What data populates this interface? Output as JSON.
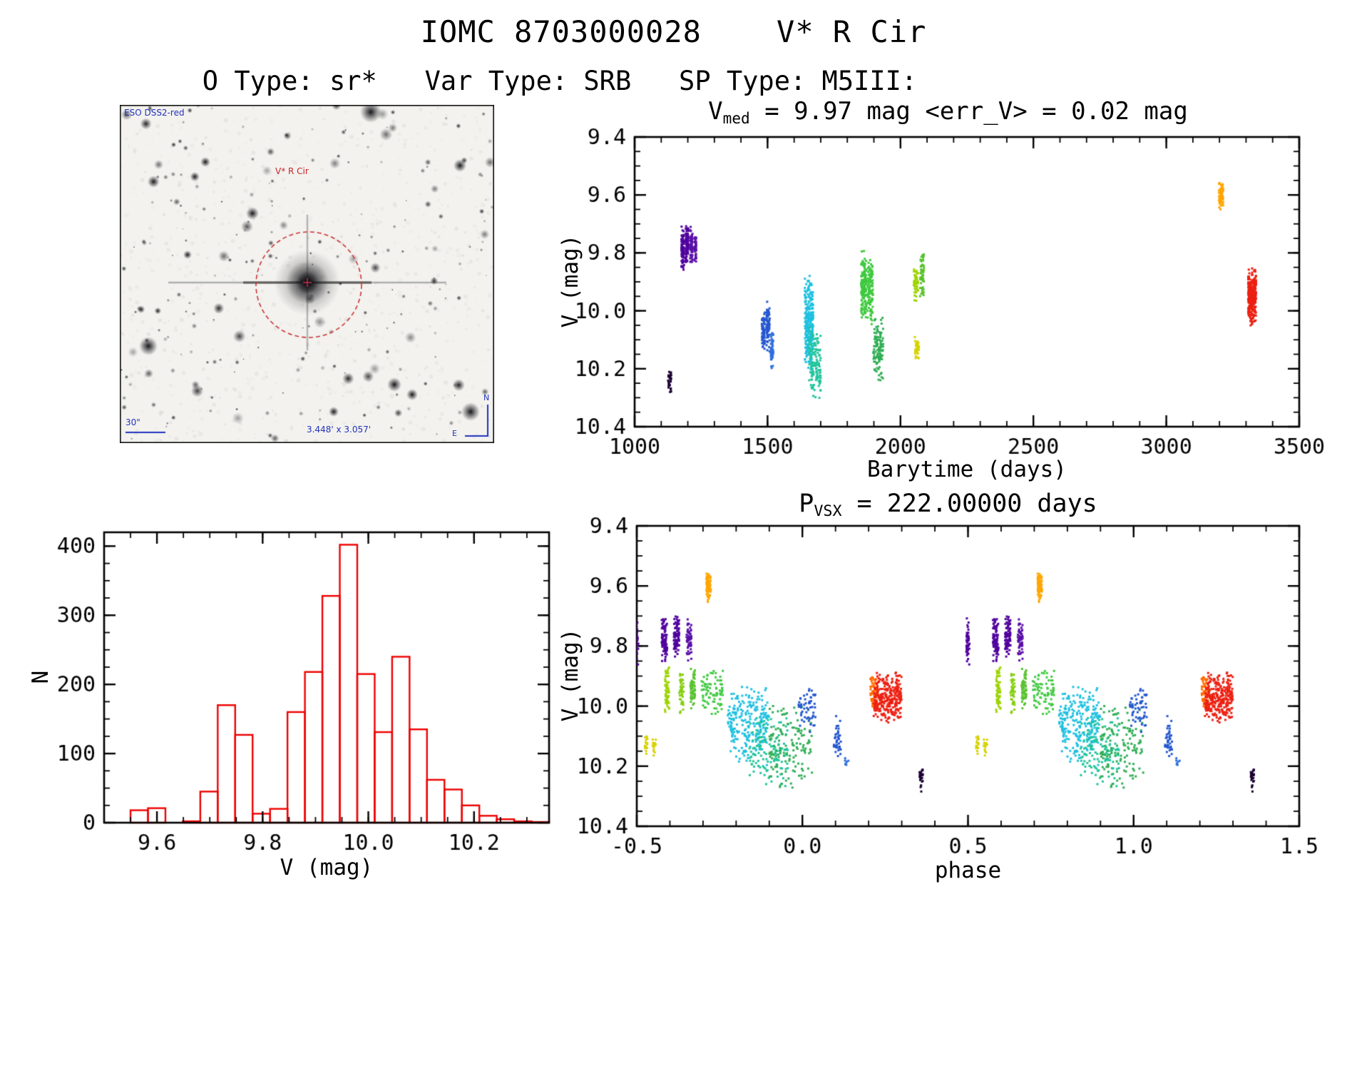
{
  "page": {
    "title": "IOMC 8703000028    V* R Cir",
    "subtitle": "O Type: sr*   Var Type: SRB   SP Type: M5III:"
  },
  "finder": {
    "survey": "ESO DSS2-red",
    "target": "V* R Cir",
    "scalebar": "30\"",
    "fov": "3.448' x 3.057'",
    "compass_n": "N",
    "compass_e": "E"
  },
  "chart_data": [
    {
      "id": "lightcurve",
      "type": "scatter",
      "title_prefix": "V",
      "title_sub": "med",
      "title_rest": " = 9.97 mag <err_V> = 0.02 mag",
      "xlabel": "Barytime (days)",
      "ylabel": "V (mag)",
      "xlim": [
        1000,
        3500
      ],
      "ylim": [
        9.4,
        10.4
      ],
      "y_inverted": true,
      "xticks": {
        "values": [
          1000,
          1500,
          2000,
          2500,
          3000,
          3500
        ],
        "labels": [
          "1000",
          "1500",
          "2000",
          "2500",
          "3000",
          "3500"
        ],
        "minor_step": 100
      },
      "yticks": {
        "values": [
          9.4,
          9.6,
          9.8,
          10.0,
          10.2,
          10.4
        ],
        "labels": [
          "9.4",
          "9.6",
          "9.8",
          "10.0",
          "10.2",
          "10.4"
        ],
        "minor_step": 0.05
      },
      "clusters": [
        {
          "color": "#1c0033",
          "x": [
            1126,
            1138
          ],
          "y": [
            10.2,
            10.29
          ],
          "n": 28
        },
        {
          "color": "#50009e",
          "x": [
            1176,
            1186
          ],
          "y": [
            9.7,
            9.87
          ],
          "n": 90
        },
        {
          "color": "#50009e",
          "x": [
            1192,
            1202
          ],
          "y": [
            9.69,
            9.84
          ],
          "n": 90
        },
        {
          "color": "#5a10a8",
          "x": [
            1208,
            1218
          ],
          "y": [
            9.7,
            9.85
          ],
          "n": 70
        },
        {
          "color": "#5a10a8",
          "x": [
            1224,
            1232
          ],
          "y": [
            9.72,
            9.83
          ],
          "n": 45
        },
        {
          "color": "#2457cf",
          "x": [
            1478,
            1490
          ],
          "y": [
            10.0,
            10.14
          ],
          "n": 70
        },
        {
          "color": "#2457cf",
          "x": [
            1496,
            1508
          ],
          "y": [
            9.96,
            10.15
          ],
          "n": 70
        },
        {
          "color": "#2e6fe0",
          "x": [
            1512,
            1522
          ],
          "y": [
            10.05,
            10.21
          ],
          "n": 45
        },
        {
          "color": "#1ec0e0",
          "x": [
            1640,
            1672
          ],
          "y": [
            9.87,
            10.22
          ],
          "n": 260
        },
        {
          "color": "#20c49a",
          "x": [
            1655,
            1700
          ],
          "y": [
            10.05,
            10.31
          ],
          "n": 130
        },
        {
          "color": "#3fc93f",
          "x": [
            1852,
            1872
          ],
          "y": [
            9.79,
            10.03
          ],
          "n": 160
        },
        {
          "color": "#3fc93f",
          "x": [
            1876,
            1896
          ],
          "y": [
            9.82,
            10.05
          ],
          "n": 110
        },
        {
          "color": "#2fae55",
          "x": [
            1898,
            1935
          ],
          "y": [
            10.02,
            10.25
          ],
          "n": 110
        },
        {
          "color": "#9ed400",
          "x": [
            2050,
            2066
          ],
          "y": [
            9.85,
            9.97
          ],
          "n": 55
        },
        {
          "color": "#d6d200",
          "x": [
            2054,
            2070
          ],
          "y": [
            10.09,
            10.17
          ],
          "n": 40
        },
        {
          "color": "#57c22e",
          "x": [
            2074,
            2088
          ],
          "y": [
            9.79,
            9.96
          ],
          "n": 60
        },
        {
          "color": "#ffa600",
          "x": [
            3198,
            3214
          ],
          "y": [
            9.55,
            9.66
          ],
          "n": 75
        },
        {
          "color": "#ec2012",
          "x": [
            3308,
            3338
          ],
          "y": [
            9.85,
            10.06
          ],
          "n": 280
        }
      ]
    },
    {
      "id": "histogram",
      "type": "bar",
      "xlabel": "V (mag)",
      "ylabel": "N",
      "xlim": [
        9.5,
        10.342
      ],
      "ylim": [
        0,
        420
      ],
      "xticks": {
        "values": [
          9.6,
          9.8,
          10.0,
          10.2
        ],
        "labels": [
          "9.6",
          "9.8",
          "10.0",
          "10.2"
        ],
        "minor_step": 0.05
      },
      "yticks": {
        "values": [
          0,
          100,
          200,
          300,
          400
        ],
        "labels": [
          "0",
          "100",
          "200",
          "300",
          "400"
        ],
        "minor_step": 25
      },
      "bar_color": "#ee0000",
      "bin_start": 9.55,
      "bin_width": 0.033,
      "counts": [
        18,
        21,
        0,
        2,
        45,
        170,
        127,
        13,
        20,
        160,
        218,
        328,
        402,
        215,
        131,
        240,
        135,
        62,
        48,
        25,
        10,
        5,
        2,
        1
      ]
    },
    {
      "id": "phase",
      "type": "scatter",
      "title_prefix": "P",
      "title_sub": "VSX",
      "title_rest": " = 222.00000 days",
      "xlabel": "phase",
      "ylabel": "V (mag)",
      "xlim": [
        -0.5,
        1.5
      ],
      "ylim": [
        9.4,
        10.4
      ],
      "y_inverted": true,
      "duplicate_offset": 1.0,
      "xticks": {
        "values": [
          -0.5,
          0.0,
          0.5,
          1.0,
          1.5
        ],
        "labels": [
          "-0.5",
          "0.0",
          "0.5",
          "1.0",
          "1.5"
        ],
        "minor_step": 0.1
      },
      "yticks": {
        "values": [
          9.4,
          9.6,
          9.8,
          10.0,
          10.2,
          10.4
        ],
        "labels": [
          "9.4",
          "9.6",
          "9.8",
          "10.0",
          "10.2",
          "10.4"
        ],
        "minor_step": 0.05
      },
      "clusters": [
        {
          "color": "#50009e",
          "x": [
            -0.505,
            -0.495
          ],
          "y": [
            9.7,
            9.87
          ],
          "n": 50
        },
        {
          "color": "#50009e",
          "x": [
            -0.425,
            -0.408
          ],
          "y": [
            9.7,
            9.86
          ],
          "n": 85
        },
        {
          "color": "#50009e",
          "x": [
            -0.388,
            -0.372
          ],
          "y": [
            9.69,
            9.84
          ],
          "n": 85
        },
        {
          "color": "#5a10a8",
          "x": [
            -0.35,
            -0.335
          ],
          "y": [
            9.71,
            9.85
          ],
          "n": 60
        },
        {
          "color": "#d6d200",
          "x": [
            -0.478,
            -0.468
          ],
          "y": [
            10.09,
            10.16
          ],
          "n": 16
        },
        {
          "color": "#d6d200",
          "x": [
            -0.452,
            -0.442
          ],
          "y": [
            10.1,
            10.17
          ],
          "n": 16
        },
        {
          "color": "#9ed400",
          "x": [
            -0.415,
            -0.402
          ],
          "y": [
            9.86,
            10.03
          ],
          "n": 55
        },
        {
          "color": "#86cf10",
          "x": [
            -0.372,
            -0.358
          ],
          "y": [
            9.87,
            10.04
          ],
          "n": 45
        },
        {
          "color": "#57c22e",
          "x": [
            -0.338,
            -0.324
          ],
          "y": [
            9.87,
            10.02
          ],
          "n": 55
        },
        {
          "color": "#ffa600",
          "x": [
            -0.29,
            -0.276
          ],
          "y": [
            9.55,
            9.66
          ],
          "n": 75
        },
        {
          "color": "#3fc93f",
          "x": [
            -0.305,
            -0.24
          ],
          "y": [
            9.85,
            10.05
          ],
          "n": 80
        },
        {
          "color": "#1ec0e0",
          "x": [
            -0.225,
            -0.1
          ],
          "y": [
            9.92,
            10.2
          ],
          "n": 240
        },
        {
          "color": "#20c49a",
          "x": [
            -0.16,
            -0.04
          ],
          "y": [
            10.02,
            10.27
          ],
          "n": 120
        },
        {
          "color": "#2fae55",
          "x": [
            -0.1,
            0.03
          ],
          "y": [
            9.98,
            10.3
          ],
          "n": 140
        },
        {
          "color": "#2457cf",
          "x": [
            -0.012,
            0.04
          ],
          "y": [
            9.93,
            10.09
          ],
          "n": 55
        },
        {
          "color": "#2457cf",
          "x": [
            0.094,
            0.116
          ],
          "y": [
            10.03,
            10.19
          ],
          "n": 40
        },
        {
          "color": "#2e6fe0",
          "x": [
            0.128,
            0.142
          ],
          "y": [
            10.17,
            10.21
          ],
          "n": 7
        },
        {
          "color": "#ff6a00",
          "x": [
            0.205,
            0.228
          ],
          "y": [
            9.89,
            10.01
          ],
          "n": 70
        },
        {
          "color": "#ec2012",
          "x": [
            0.215,
            0.3
          ],
          "y": [
            9.88,
            10.06
          ],
          "n": 280
        },
        {
          "color": "#1c0033",
          "x": [
            0.353,
            0.366
          ],
          "y": [
            10.2,
            10.29
          ],
          "n": 28
        }
      ]
    }
  ]
}
